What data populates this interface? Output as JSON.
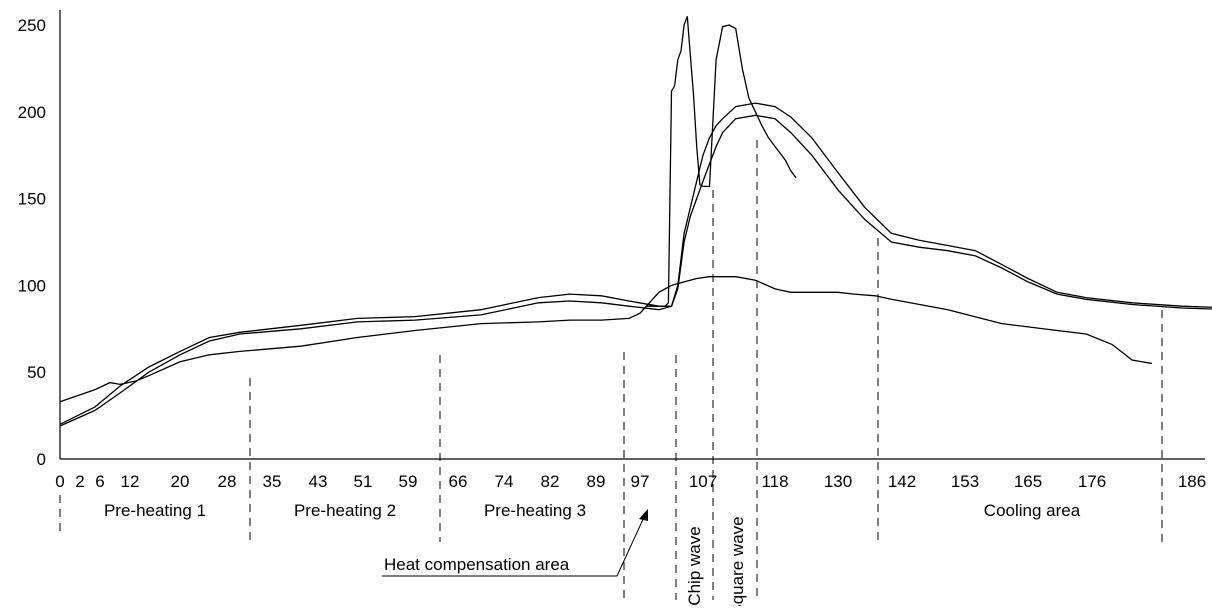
{
  "chart_data": {
    "type": "line",
    "title": "",
    "xlabel": "",
    "ylabel": "",
    "xlim": [
      0,
      190
    ],
    "ylim": [
      0,
      250
    ],
    "x_ticks": [
      0,
      2,
      6,
      12,
      20,
      28,
      35,
      43,
      51,
      59,
      66,
      74,
      82,
      89,
      97,
      107,
      118,
      130,
      142,
      153,
      165,
      176,
      186
    ],
    "x_tick_labels": [
      "0",
      "2",
      "6",
      "12",
      "20",
      "28",
      "35",
      "43",
      "51",
      "59",
      "66",
      "74",
      "82",
      "89",
      "97",
      "107",
      "118",
      "130",
      "142",
      "153",
      "165",
      "176",
      "186"
    ],
    "y_ticks": [
      0,
      50,
      100,
      150,
      200,
      250
    ],
    "y_tick_labels": [
      "0",
      "50",
      "100",
      "150",
      "200",
      "250"
    ],
    "grid": false,
    "series": [
      {
        "x": [
          0,
          5,
          10,
          15,
          20,
          25,
          30,
          40,
          50,
          60,
          70,
          80,
          85,
          90,
          95,
          100,
          102,
          103,
          104,
          105,
          106,
          107,
          108,
          109,
          110,
          112,
          115,
          118,
          121,
          125,
          130,
          135,
          140,
          145,
          150,
          155,
          160,
          165,
          170,
          175,
          180,
          185,
          190
        ],
        "y": [
          20,
          30,
          42,
          53,
          62,
          70,
          73,
          77,
          81,
          82,
          86,
          93,
          95,
          94,
          91,
          88,
          88,
          100,
          130,
          145,
          160,
          175,
          185,
          192,
          196,
          203,
          205,
          203,
          197,
          185,
          165,
          145,
          130,
          126,
          123,
          120,
          112,
          104,
          96,
          93,
          90,
          88,
          87
        ]
      },
      {
        "x": [
          0,
          5,
          10,
          15,
          20,
          25,
          30,
          40,
          50,
          60,
          70,
          80,
          85,
          90,
          95,
          100,
          102,
          103,
          104,
          105,
          106,
          107,
          108,
          109,
          110,
          112,
          115,
          118,
          121,
          125,
          130,
          135,
          140,
          145,
          150,
          155,
          160,
          165,
          170,
          175,
          180,
          185,
          190
        ],
        "y": [
          19,
          28,
          38,
          50,
          60,
          68,
          72,
          75,
          79,
          80,
          83,
          90,
          91,
          90,
          88,
          86,
          88,
          98,
          125,
          140,
          150,
          160,
          170,
          180,
          188,
          196,
          198,
          196,
          188,
          175,
          155,
          138,
          125,
          122,
          120,
          117,
          110,
          102,
          95,
          92,
          89,
          87,
          86
        ]
      },
      {
        "x": [
          0,
          5,
          8,
          10,
          13,
          15,
          20,
          25,
          30,
          40,
          50,
          60,
          70,
          80,
          85,
          90,
          95,
          97,
          100,
          102,
          104,
          106,
          108,
          110,
          112,
          115,
          118,
          121,
          125,
          128,
          130,
          133,
          137,
          140,
          150,
          160,
          170,
          175,
          178,
          180,
          182
        ],
        "y": [
          33,
          40,
          44,
          43,
          45,
          48,
          56,
          60,
          62,
          65,
          70,
          74,
          78,
          79,
          80,
          80,
          81,
          84,
          96,
          100,
          102,
          104,
          105,
          105,
          105,
          103,
          98,
          96,
          96,
          96,
          96,
          95,
          94,
          92,
          86,
          78,
          74,
          72,
          66,
          57,
          55
        ]
      },
      {
        "x": [
          98,
          99,
          100,
          101,
          101.5,
          102,
          102.5,
          103,
          103.5,
          104,
          104.5,
          105,
          105.5,
          106,
          106.5,
          107,
          108,
          109,
          110,
          111,
          112,
          113,
          114,
          115,
          116,
          117,
          118,
          119,
          120,
          121,
          122
        ],
        "y": [
          88,
          88,
          88,
          88,
          90,
          212,
          215,
          230,
          235,
          250,
          255,
          232,
          210,
          180,
          158,
          157,
          157,
          230,
          249,
          250,
          248,
          225,
          208,
          200,
          192,
          185,
          180,
          176,
          172,
          166,
          162
        ]
      }
    ],
    "regions": [
      {
        "label": "Pre-heating 1"
      },
      {
        "label": "Pre-heating 2"
      },
      {
        "label": "Pre-heating 3"
      },
      {
        "label": "Heat compensation area"
      },
      {
        "label": "Chip wave"
      },
      {
        "label": "Square wave"
      },
      {
        "label": "Cooling area"
      }
    ]
  }
}
